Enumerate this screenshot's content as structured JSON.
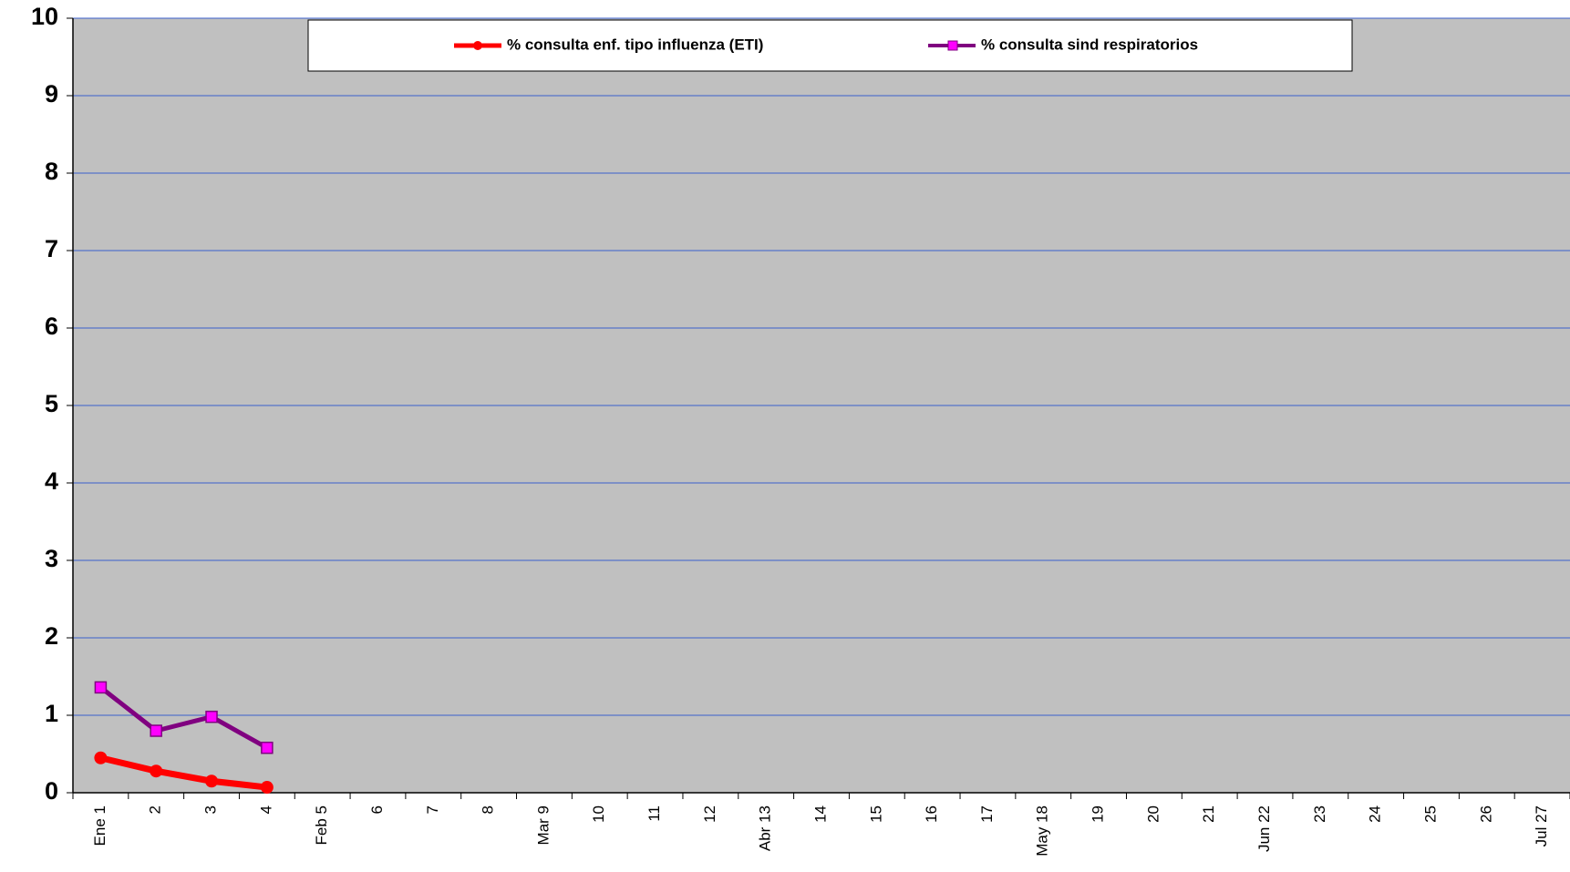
{
  "chart_data": {
    "type": "line",
    "categories": [
      "Ene 1",
      "2",
      "3",
      "4",
      "Feb 5",
      "6",
      "7",
      "8",
      "Mar 9",
      "10",
      "11",
      "12",
      "Abr 13",
      "14",
      "15",
      "16",
      "17",
      "May 18",
      "19",
      "20",
      "21",
      "Jun 22",
      "23",
      "24",
      "25",
      "26",
      "Jul 27"
    ],
    "series": [
      {
        "name": "% consulta enf. tipo influenza (ETI)",
        "color": "#ff0000",
        "marker": "circle",
        "values": [
          0.45,
          0.28,
          0.15,
          0.07,
          null,
          null,
          null,
          null,
          null,
          null,
          null,
          null,
          null,
          null,
          null,
          null,
          null,
          null,
          null,
          null,
          null,
          null,
          null,
          null,
          null,
          null,
          null
        ]
      },
      {
        "name": "% consulta sind respiratorios",
        "color": "#800080",
        "marker_color": "#ff00ff",
        "marker": "square",
        "values": [
          1.36,
          0.8,
          0.98,
          0.58,
          null,
          null,
          null,
          null,
          null,
          null,
          null,
          null,
          null,
          null,
          null,
          null,
          null,
          null,
          null,
          null,
          null,
          null,
          null,
          null,
          null,
          null,
          null
        ]
      }
    ],
    "ylim": [
      0,
      10
    ],
    "yticks": [
      0,
      1,
      2,
      3,
      4,
      5,
      6,
      7,
      8,
      9,
      10
    ],
    "grid": true,
    "legend": "top"
  }
}
